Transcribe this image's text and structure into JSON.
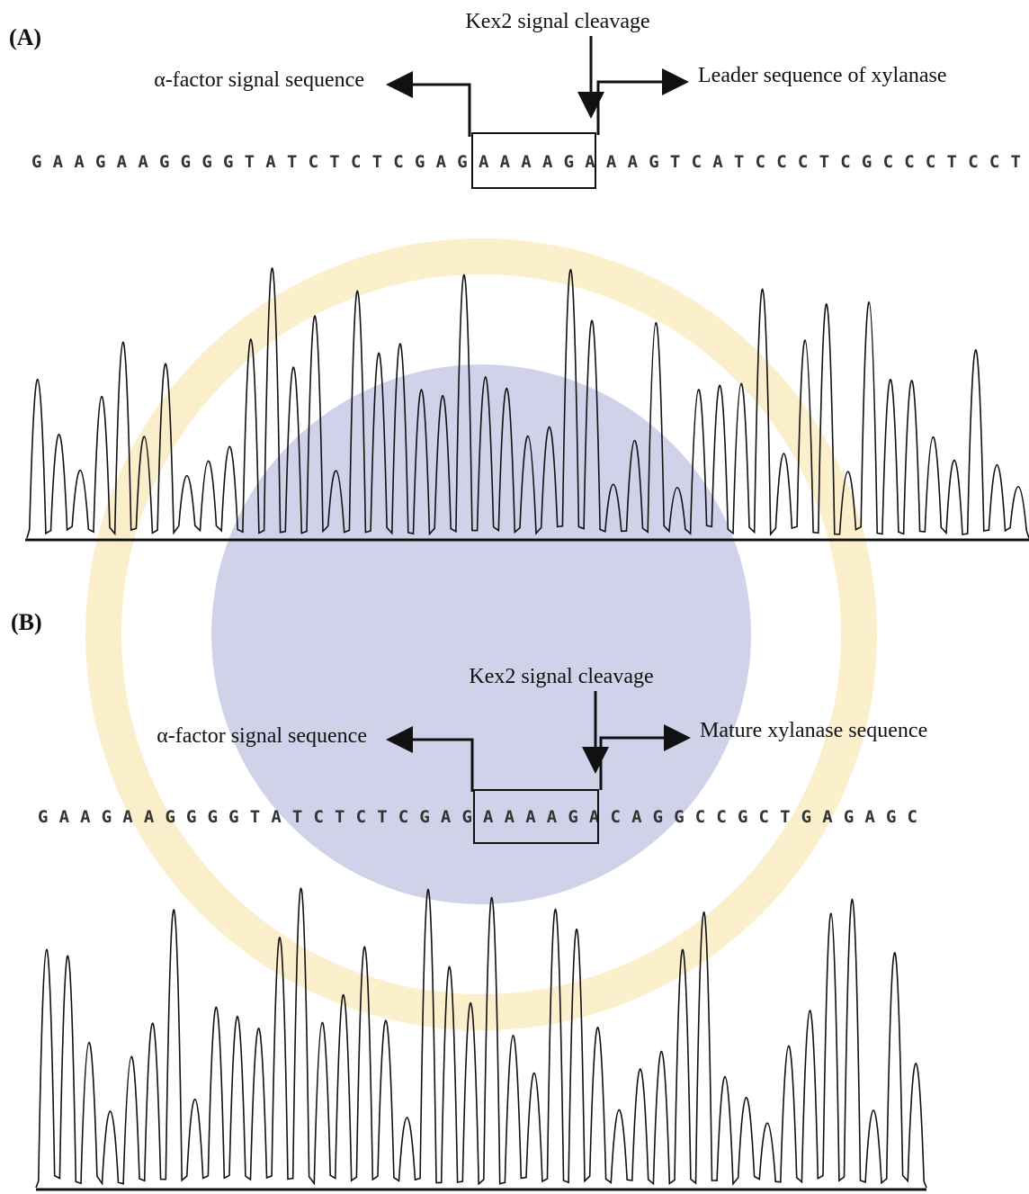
{
  "panel_a": {
    "label": "(A)",
    "cleavage": "Kex2 signal cleavage",
    "left_region": "α-factor signal sequence",
    "right_region": "Leader sequence of xylanase",
    "sequence": "GAAGAAGGGGTATCTCTCGAGAAAAGAAAGTCATCCCTCGCCCTCCT"
  },
  "panel_b": {
    "label": "(B)",
    "cleavage": "Kex2 signal cleavage",
    "left_region": "α-factor signal sequence",
    "right_region": "Mature xylanase sequence",
    "sequence": "GAAGAAGGGGTATCTCTCGAGAAAAGACAGGCCGCTGAGAGC"
  }
}
